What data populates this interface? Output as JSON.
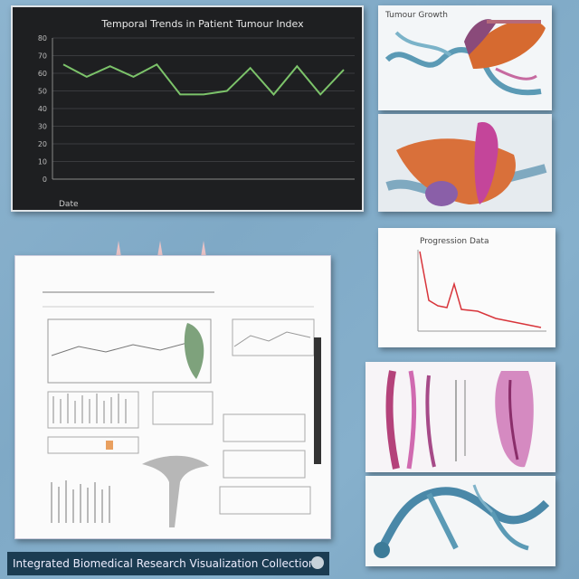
{
  "dark_chart": {
    "title": "Temporal Trends in Patient Tumour Index",
    "xlabel": "Date"
  },
  "chart_data": {
    "type": "line",
    "title": "Temporal Trends in Patient Tumour Index",
    "xlabel": "Date",
    "ylabel": "",
    "categories": [
      "",
      "",
      "",
      "",
      "",
      "",
      "",
      "",
      "",
      "",
      "",
      "",
      ""
    ],
    "series": [
      {
        "values": [
          65,
          58,
          64,
          58,
          65,
          48,
          48,
          50,
          63,
          48,
          64,
          48,
          62
        ]
      }
    ],
    "ylim": [
      0,
      80
    ],
    "yticks": [
      0,
      10,
      20,
      30,
      40,
      50,
      60,
      70,
      80
    ],
    "grid": true,
    "colors": {
      "line": "#7cc36a",
      "background": "#1e1f21",
      "grid": "#3a3b3e"
    }
  },
  "right_panels": {
    "r1_label": "Tumour Growth",
    "r3_title": "Progression Data"
  },
  "caption": {
    "text": "Integrated Biomedical Research Visualization Collection",
    "icon": "info-icon"
  }
}
